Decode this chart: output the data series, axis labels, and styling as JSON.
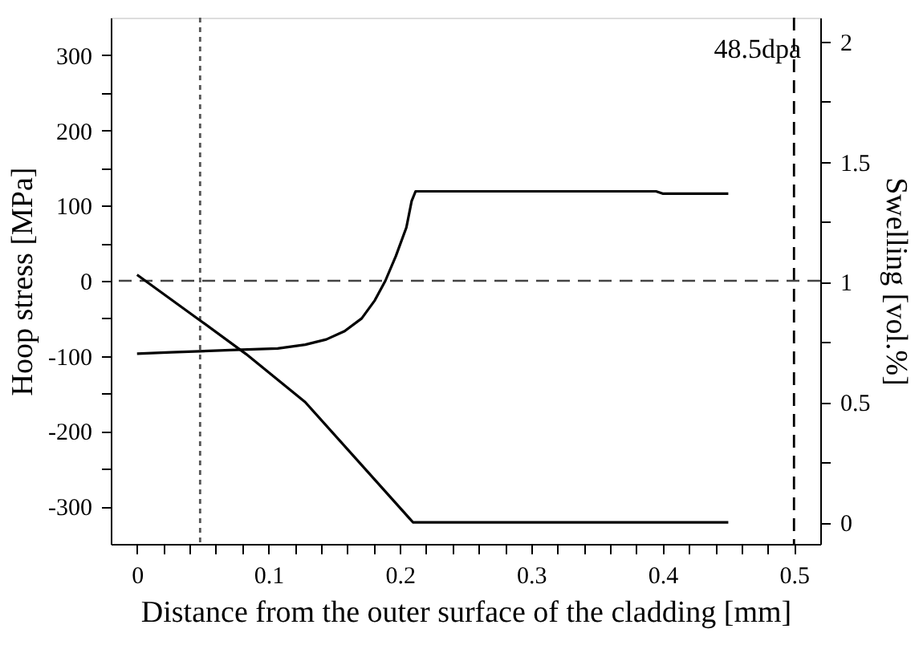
{
  "chart_data": {
    "type": "line",
    "xlabel": "Distance from the outer surface of the cladding [mm]",
    "ylabel": "Hoop stress [MPa]",
    "y2label": "Swelling [vol.%]",
    "annotations": [
      "48.5dpa"
    ],
    "xlim": [
      -0.02,
      0.52
    ],
    "ylim": [
      -350,
      350
    ],
    "y2lim": [
      -0.09,
      2.1
    ],
    "xticks": [
      0,
      {
        "value": 0.02,
        "label": null
      },
      {
        "value": 0.04,
        "label": null
      },
      {
        "value": 0.06,
        "label": null
      },
      {
        "value": 0.08,
        "label": null
      },
      0.1,
      {
        "value": 0.12,
        "label": null
      },
      {
        "value": 0.14,
        "label": null
      },
      {
        "value": 0.16,
        "label": null
      },
      {
        "value": 0.18,
        "label": null
      },
      0.2,
      {
        "value": 0.22,
        "label": null
      },
      {
        "value": 0.24,
        "label": null
      },
      {
        "value": 0.26,
        "label": null
      },
      {
        "value": 0.28,
        "label": null
      },
      0.3,
      {
        "value": 0.32,
        "label": null
      },
      {
        "value": 0.34,
        "label": null
      },
      {
        "value": 0.36,
        "label": null
      },
      {
        "value": 0.38,
        "label": null
      },
      0.4,
      {
        "value": 0.42,
        "label": null
      },
      {
        "value": 0.44,
        "label": null
      },
      {
        "value": 0.46,
        "label": null
      },
      {
        "value": 0.48,
        "label": null
      },
      0.5
    ],
    "yticks": [
      -300,
      {
        "value": -250,
        "label": null
      },
      -200,
      {
        "value": -150,
        "label": null
      },
      -100,
      {
        "value": -50,
        "label": null
      },
      0,
      {
        "value": 50,
        "label": null
      },
      100,
      {
        "value": 150,
        "label": null
      },
      200,
      {
        "value": 250,
        "label": null
      },
      300
    ],
    "y2ticks": [
      0,
      {
        "value": 0.25,
        "label": null
      },
      0.5,
      {
        "value": 0.75,
        "label": null
      },
      1,
      {
        "value": 1.25,
        "label": null
      },
      1.5,
      {
        "value": 1.75,
        "label": null
      },
      2
    ],
    "series": [
      {
        "color": "#000000",
        "x": [
          0,
          0.026,
          0.075,
          0.107,
          0.128,
          0.144,
          0.158,
          0.171,
          0.181,
          0.189,
          0.197,
          0.205,
          0.209,
          0.212,
          0.395,
          0.4,
          0.45
        ],
        "values": [
          -97,
          -95,
          -92,
          -90,
          -85,
          -78,
          -67,
          -50,
          -26,
          0,
          33,
          71,
          106,
          119,
          119,
          116,
          116
        ]
      },
      {
        "color": "#000000",
        "axis": "y2",
        "x": [
          0,
          0.048,
          0.083,
          0.128,
          0.169,
          0.21,
          0.45
        ],
        "values": [
          1.03,
          0.84,
          0.7,
          0.5,
          0.25,
          0,
          0
        ]
      }
    ],
    "ref_lines": [
      {
        "axis": "x",
        "value": 0.048,
        "label": null,
        "color": "#555555",
        "line_style": "dotted"
      },
      {
        "axis": "x",
        "value": 0.5,
        "label": null,
        "color": "#000000",
        "line_style": "dashed"
      },
      {
        "axis": "y",
        "value": 0,
        "label": null,
        "color": "#444444",
        "line_style": "dashed"
      }
    ],
    "grid": false,
    "marker": "none",
    "line_style": "solid"
  }
}
